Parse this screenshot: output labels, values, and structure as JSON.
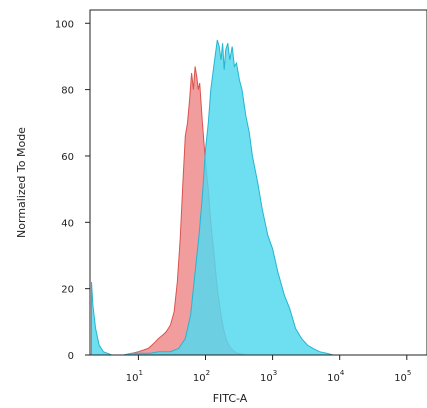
{
  "chart_data": {
    "type": "area",
    "title": "",
    "xlabel": "FITC-A",
    "ylabel": "Normalized To Mode",
    "x_scale": "log",
    "xlim": [
      1.9,
      200000
    ],
    "ylim": [
      0,
      104
    ],
    "x_ticks": [
      {
        "value": 10,
        "base": "10",
        "exp": "1"
      },
      {
        "value": 100,
        "base": "10",
        "exp": "2"
      },
      {
        "value": 1000,
        "base": "10",
        "exp": "3"
      },
      {
        "value": 10000,
        "base": "10",
        "exp": "4"
      },
      {
        "value": 100000,
        "base": "10",
        "exp": "5"
      }
    ],
    "y_ticks": [
      {
        "value": 0,
        "label": "0"
      },
      {
        "value": 20,
        "label": "20"
      },
      {
        "value": 40,
        "label": "40"
      },
      {
        "value": 60,
        "label": "60"
      },
      {
        "value": 80,
        "label": "80"
      },
      {
        "value": 100,
        "label": "100"
      }
    ],
    "grid": false,
    "legend": "none",
    "series": [
      {
        "color": "#f08c8c",
        "stroke": "#d9534f",
        "opacity": 0.85,
        "x": [
          2,
          4,
          6,
          8,
          10,
          12,
          14,
          16,
          18,
          20,
          23,
          26,
          30,
          34,
          38,
          42,
          46,
          50,
          54,
          58,
          62,
          66,
          70,
          74,
          78,
          82,
          90,
          100,
          110,
          120,
          135,
          150,
          170,
          190,
          210,
          240,
          270,
          300,
          350,
          400,
          500
        ],
        "y": [
          0,
          0,
          0,
          0.5,
          1,
          1.5,
          2,
          3,
          4,
          5,
          6,
          7,
          9,
          13,
          22,
          35,
          52,
          66,
          70,
          77,
          85,
          80,
          87,
          84,
          80,
          82,
          70,
          58,
          50,
          40,
          30,
          20,
          12,
          7,
          4,
          2,
          1,
          0.5,
          0.2,
          0,
          0
        ]
      },
      {
        "color": "#55d8ef",
        "stroke": "#25b5cf",
        "opacity": 0.85,
        "x": [
          2,
          2.1,
          2.3,
          2.6,
          3,
          4,
          6,
          8,
          10,
          15,
          20,
          30,
          40,
          50,
          60,
          70,
          80,
          90,
          100,
          110,
          120,
          135,
          150,
          160,
          170,
          180,
          190,
          200,
          215,
          230,
          250,
          270,
          290,
          320,
          350,
          400,
          450,
          500,
          600,
          700,
          850,
          1000,
          1200,
          1500,
          1800,
          2200,
          2700,
          3300,
          4000,
          5000,
          6500,
          8000
        ],
        "y": [
          22,
          15,
          8,
          3,
          1,
          0,
          0,
          0.5,
          0.5,
          0.5,
          1,
          1,
          2,
          5,
          12,
          25,
          36,
          48,
          62,
          70,
          80,
          88,
          95,
          93,
          89,
          94,
          86,
          92,
          94,
          89,
          93,
          87,
          88,
          83,
          80,
          72,
          67,
          60,
          52,
          44,
          36,
          32,
          25,
          18,
          14,
          8,
          5,
          3,
          2,
          1,
          0.5,
          0
        ]
      }
    ]
  }
}
